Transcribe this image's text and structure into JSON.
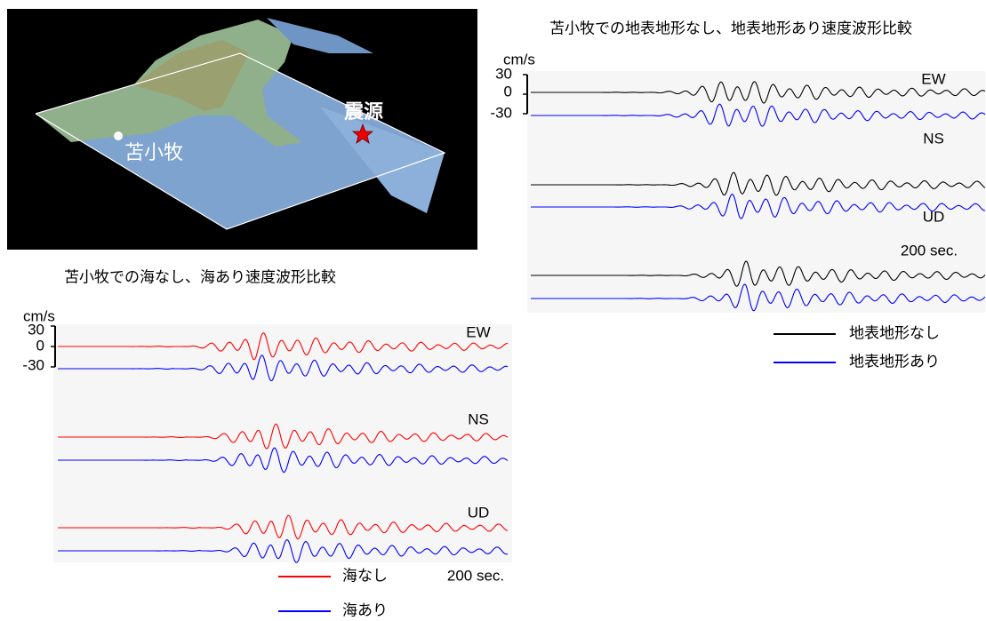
{
  "map": {
    "city": "苫小牧",
    "epicenter": "震源"
  },
  "panels": [
    {
      "title": "苫小牧での地表地形なし、地表地形あり速度波形比較",
      "unit": "cm/s",
      "scale": [
        "30",
        "0",
        "-30"
      ],
      "components": [
        "EW",
        "NS",
        "UD"
      ],
      "duration": "200 sec.",
      "legend": [
        {
          "label": "地表地形なし",
          "color": "#000000"
        },
        {
          "label": "地表地形あり",
          "color": "#0000ff"
        }
      ]
    },
    {
      "title": "苫小牧での海なし、海あり速度波形比較",
      "unit": "cm/s",
      "scale": [
        "30",
        "0",
        "-30"
      ],
      "components": [
        "EW",
        "NS",
        "UD"
      ],
      "duration": "200 sec.",
      "legend": [
        {
          "label": "海なし",
          "color": "#ff0000"
        },
        {
          "label": "海あり",
          "color": "#0000ff"
        }
      ]
    }
  ]
}
